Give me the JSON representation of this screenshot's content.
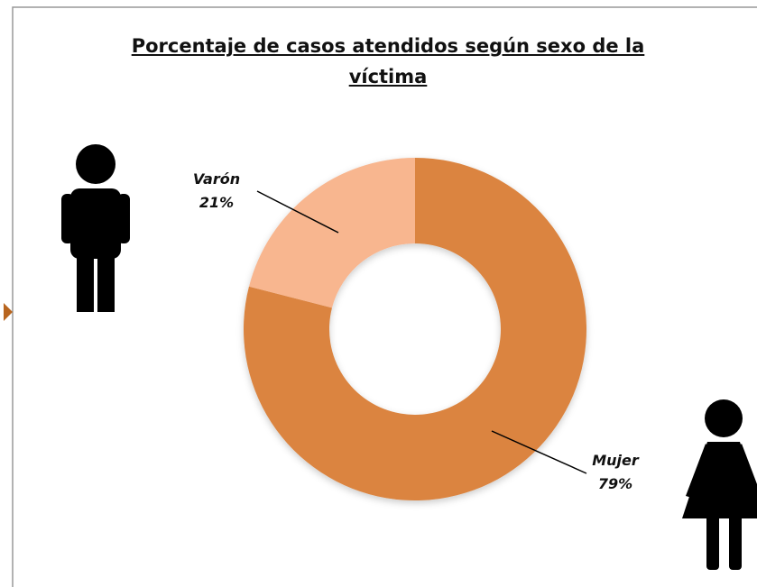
{
  "chart_data": {
    "type": "donut",
    "title": "Porcentaje de casos atendidos según sexo de la víctima",
    "categories": [
      "Mujer",
      "Varón"
    ],
    "values": [
      79,
      21
    ],
    "value_labels": [
      "79%",
      "21%"
    ],
    "colors": [
      "#db843f",
      "#f8b68f"
    ]
  }
}
